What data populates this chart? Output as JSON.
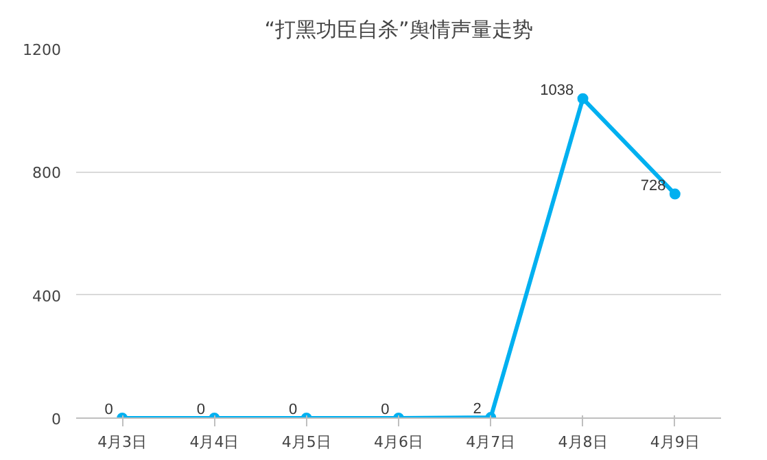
{
  "chart_data": {
    "type": "line",
    "title": "“打黑功臣自杀”舆情声量走势",
    "categories": [
      "4月3日",
      "4月4日",
      "4月5日",
      "4月6日",
      "4月7日",
      "4月8日",
      "4月9日"
    ],
    "series": [
      {
        "color": "#00b0f0",
        "values": [
          0,
          0,
          0,
          0,
          2,
          1038,
          728
        ]
      }
    ],
    "ylim": [
      0,
      1200
    ],
    "yticks": [
      0,
      400,
      800,
      1200
    ],
    "grid": "y",
    "marker": "circle",
    "line_style": "solid",
    "data_labels": true
  }
}
